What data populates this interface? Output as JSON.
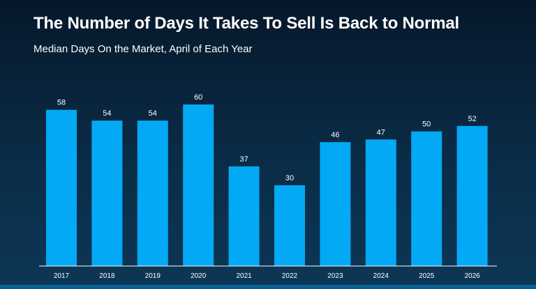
{
  "title": "The Number of Days It Takes To Sell Is Back to Normal",
  "subtitle": "Median Days On the Market, April of Each Year",
  "colors": {
    "bar": "#03a9f4",
    "axis": "#ffffff"
  },
  "chart_data": {
    "type": "bar",
    "title": "The Number of Days It Takes To Sell Is Back to Normal",
    "subtitle": "Median Days On the Market, April of Each Year",
    "categories": [
      "2017",
      "2018",
      "2019",
      "2020",
      "2021",
      "2022",
      "2023",
      "2024",
      "2025",
      "2026"
    ],
    "values": [
      58,
      54,
      54,
      60,
      37,
      30,
      46,
      47,
      50,
      52
    ],
    "data_labels": [
      "58",
      "54",
      "54",
      "60",
      "37",
      "30",
      "46",
      "47",
      "50",
      "52"
    ],
    "ylim": [
      0,
      60
    ],
    "grid": false
  }
}
